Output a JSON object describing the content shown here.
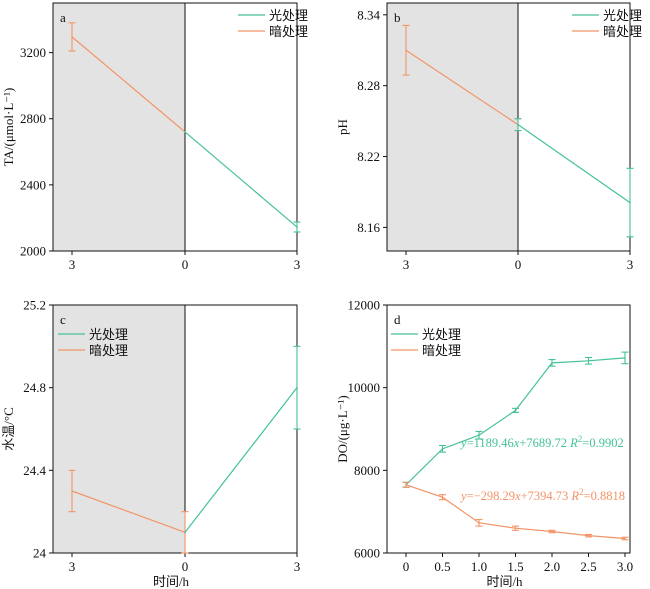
{
  "colors": {
    "light": "#45c19b",
    "dark": "#f39467",
    "shade": "#e3e3e3",
    "axis": "#111111"
  },
  "legend": {
    "light": "光处理",
    "dark": "暗处理"
  },
  "chart_data": [
    {
      "panel": "a",
      "type": "line",
      "ylabel": "TA/(μmol·L⁻¹)",
      "ylim": [
        2000,
        3500
      ],
      "yticks": [
        2000,
        2400,
        2800,
        3200
      ],
      "xticks": [
        "3",
        "0",
        "3"
      ],
      "shaded_region": "left half (dark treatment)",
      "series": [
        {
          "name": "暗处理",
          "x": [
            "3",
            "0"
          ],
          "y": [
            3295,
            2720
          ],
          "err": [
            85,
            0
          ]
        },
        {
          "name": "光处理",
          "x": [
            "0",
            "3"
          ],
          "y": [
            2720,
            2145
          ],
          "err": [
            0,
            30
          ]
        }
      ]
    },
    {
      "panel": "b",
      "type": "line",
      "ylabel": "pH",
      "ylim": [
        8.14,
        8.35
      ],
      "yticks": [
        8.16,
        8.22,
        8.28,
        8.34
      ],
      "xticks": [
        "3",
        "0",
        "3"
      ],
      "shaded_region": "left half (dark treatment)",
      "series": [
        {
          "name": "暗处理",
          "x": [
            "3",
            "0"
          ],
          "y": [
            8.31,
            8.247
          ],
          "err": [
            0.021,
            0.005
          ]
        },
        {
          "name": "光处理",
          "x": [
            "0",
            "3"
          ],
          "y": [
            8.247,
            8.181
          ],
          "err": [
            0.005,
            0.029
          ]
        }
      ]
    },
    {
      "panel": "c",
      "type": "line",
      "ylabel": "水温/°C",
      "xlabel": "时间/h",
      "ylim": [
        24.0,
        25.2
      ],
      "yticks": [
        24.0,
        24.4,
        24.8,
        25.2
      ],
      "xticks": [
        "3",
        "0",
        "3"
      ],
      "shaded_region": "left half (dark treatment)",
      "series": [
        {
          "name": "暗处理",
          "x": [
            "3",
            "0"
          ],
          "y": [
            24.3,
            24.1
          ],
          "err": [
            0.1,
            0.1
          ]
        },
        {
          "name": "光处理",
          "x": [
            "0",
            "3"
          ],
          "y": [
            24.1,
            24.8
          ],
          "err": [
            0,
            0.2
          ]
        }
      ]
    },
    {
      "panel": "d",
      "type": "line",
      "ylabel": "DO/(μg·L⁻¹)",
      "xlabel": "时间/h",
      "ylim": [
        6000,
        12000
      ],
      "yticks": [
        6000,
        8000,
        10000,
        12000
      ],
      "xticks": [
        "0",
        "0.5",
        "1.0",
        "1.5",
        "2.0",
        "2.5",
        "3.0"
      ],
      "x": [
        0,
        0.5,
        1.0,
        1.5,
        2.0,
        2.5,
        3.0
      ],
      "series": [
        {
          "name": "光处理",
          "y": [
            7650,
            8520,
            8850,
            9450,
            10600,
            10650,
            10720
          ],
          "err": [
            60,
            80,
            90,
            50,
            80,
            80,
            140
          ],
          "equation": "y=1189.46x+7689.72 R²=0.9902"
        },
        {
          "name": "暗处理",
          "y": [
            7650,
            7350,
            6730,
            6600,
            6520,
            6420,
            6350
          ],
          "err": [
            60,
            60,
            80,
            50,
            30,
            30,
            30
          ],
          "equation": "y=−298.29x+7394.73 R²=0.8818"
        }
      ]
    }
  ]
}
